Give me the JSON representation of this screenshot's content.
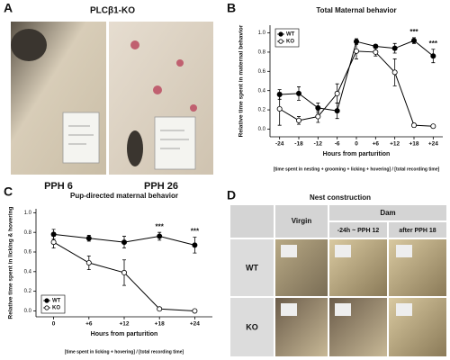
{
  "panel_labels": [
    "A",
    "B",
    "C",
    "D"
  ],
  "photo_panel": {
    "title": "PLCβ1-KO",
    "captions": [
      "PPH 6",
      "PPH 26"
    ]
  },
  "chart_data": [
    {
      "type": "line",
      "title": "Total Maternal behavior",
      "x_label": "Hours from parturition",
      "y_label": "Relative time spent in maternal behavior",
      "footnote": "[time spent in nesting + grooming + licking + hovering] / [total recording time]",
      "categories": [
        "-24",
        "-18",
        "-12",
        "-6",
        "0",
        "+6",
        "+12",
        "+18",
        "+24"
      ],
      "series": [
        {
          "name": "WT",
          "color": "#000000",
          "marker": "filled",
          "values": [
            0.36,
            0.37,
            0.22,
            0.19,
            0.91,
            0.86,
            0.84,
            0.92,
            0.76
          ],
          "errors": [
            0.05,
            0.07,
            0.05,
            0.08,
            0.03,
            0.02,
            0.05,
            0.03,
            0.07
          ]
        },
        {
          "name": "KO",
          "color": "#000000",
          "marker": "open",
          "values": [
            0.21,
            0.09,
            0.13,
            0.37,
            0.81,
            0.8,
            0.59,
            0.04,
            0.03
          ],
          "errors": [
            0.17,
            0.04,
            0.06,
            0.1,
            0.08,
            0.04,
            0.14,
            0.02,
            0.01
          ]
        }
      ],
      "ylim": [
        -0.08,
        1.08
      ],
      "yticks": [
        {
          "value": 0,
          "label": "0.0"
        },
        {
          "value": 0.2,
          "label": "0.2"
        },
        {
          "value": 0.4,
          "label": "0.4"
        },
        {
          "value": 0.6,
          "label": "0.6"
        },
        {
          "value": 0.8,
          "label": "0.8"
        },
        {
          "value": 1,
          "label": "1.0"
        }
      ],
      "legend": "top-left",
      "annotations": [
        {
          "text": "***",
          "x": "+18"
        },
        {
          "text": "***",
          "x": "+24"
        }
      ]
    },
    {
      "type": "line",
      "title": "Pup-directed maternal behavior",
      "x_label": "Hours from parturition",
      "y_label": "Relative time spent in licking & hovering",
      "footnote": "[time spent in licking + hovering] / [total recording time]",
      "categories": [
        "0",
        "+6",
        "+12",
        "+18",
        "+24"
      ],
      "series": [
        {
          "name": "WT",
          "color": "#000000",
          "marker": "filled",
          "values": [
            0.78,
            0.74,
            0.7,
            0.76,
            0.67
          ],
          "errors": [
            0.05,
            0.03,
            0.06,
            0.04,
            0.08
          ]
        },
        {
          "name": "KO",
          "color": "#000000",
          "marker": "open",
          "values": [
            0.7,
            0.49,
            0.39,
            0.02,
            0.0
          ],
          "errors": [
            0.06,
            0.07,
            0.13,
            0.01,
            0.005
          ]
        }
      ],
      "ylim": [
        -0.06,
        1.04
      ],
      "yticks": [
        {
          "value": 0,
          "label": "0.0"
        },
        {
          "value": 0.2,
          "label": "0.2"
        },
        {
          "value": 0.4,
          "label": "0.4"
        },
        {
          "value": 0.6,
          "label": "0.6"
        },
        {
          "value": 0.8,
          "label": "0.8"
        },
        {
          "value": 1,
          "label": "1.0"
        }
      ],
      "legend": "bottom-left",
      "annotations": [
        {
          "text": "***",
          "x": "+18"
        },
        {
          "text": "***",
          "x": "+24"
        }
      ]
    }
  ],
  "nest_table": {
    "title": "Nest construction",
    "column_groups": [
      "Virgin",
      "Dam"
    ],
    "sub_columns": [
      "-24h ~ PPH 12",
      "after PPH 18"
    ],
    "rows": [
      "WT",
      "KO"
    ]
  }
}
